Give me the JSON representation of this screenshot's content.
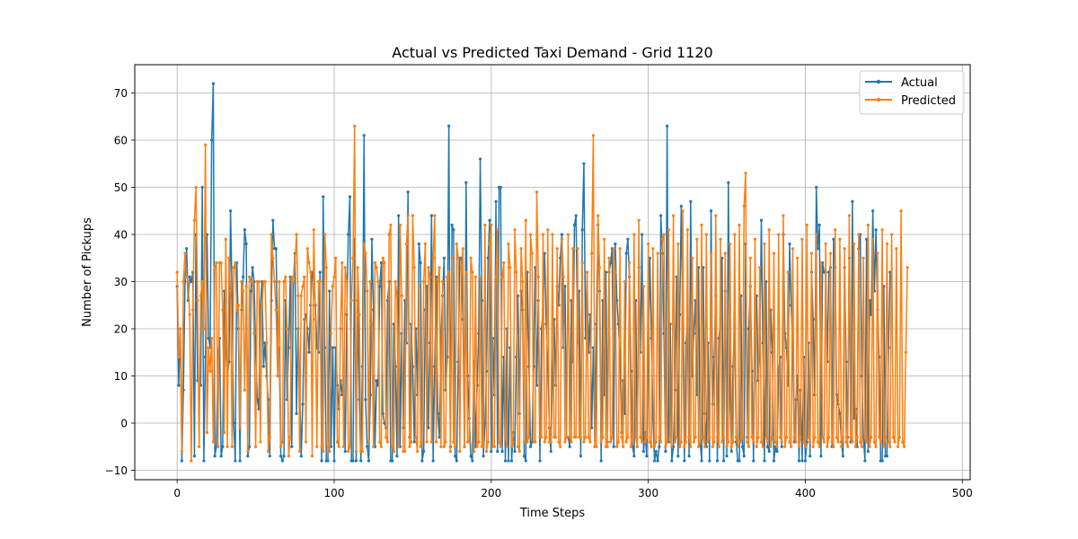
{
  "chart_data": {
    "type": "line",
    "title": "Actual vs Predicted Taxi Demand - Grid 1120",
    "xlabel": "Time Steps",
    "ylabel": "Number of Pickups",
    "xlim": [
      -27,
      505
    ],
    "ylim": [
      -12,
      76
    ],
    "xticks": [
      0,
      100,
      200,
      300,
      400,
      500
    ],
    "yticks": [
      -10,
      0,
      10,
      20,
      30,
      40,
      50,
      60,
      70
    ],
    "grid": true,
    "legend_position": "top-right",
    "x": {
      "start": 0,
      "end": 481,
      "step": 1
    },
    "series": [
      {
        "name": "Actual",
        "color": "#1f77b4",
        "values": [
          29,
          8,
          20,
          -8,
          7,
          30,
          37,
          26,
          31,
          30,
          32,
          -7,
          40,
          9,
          9,
          8,
          50,
          -8,
          14,
          40,
          18,
          16,
          60,
          72,
          -7,
          -5,
          14,
          18,
          -7,
          -5,
          28,
          15,
          10,
          13,
          45,
          27,
          0,
          -8,
          34,
          20,
          -8,
          24,
          31,
          41,
          38,
          -7,
          -5,
          28,
          33,
          30,
          15,
          5,
          3,
          25,
          30,
          12,
          17,
          10,
          5,
          -7,
          26,
          43,
          37,
          37,
          15,
          16,
          -7,
          -8,
          -7,
          26,
          5,
          16,
          31,
          -5,
          30,
          36,
          2,
          20,
          10,
          -7,
          4,
          22,
          23,
          20,
          15,
          25,
          32,
          31,
          25,
          16,
          15,
          32,
          -8,
          48,
          16,
          -8,
          -8,
          28,
          -5,
          16,
          -8,
          16,
          8,
          3,
          9,
          6,
          12,
          -6,
          23,
          40,
          48,
          -8,
          -8,
          39,
          -8,
          26,
          5,
          -8,
          12,
          61,
          5,
          -5,
          -8,
          6,
          39,
          24,
          -5,
          9,
          8,
          29,
          34,
          2,
          0,
          -1,
          26,
          30,
          -8,
          -8,
          21,
          12,
          -7,
          44,
          -5,
          19,
          -1,
          26,
          17,
          49,
          -3,
          21,
          12,
          -4,
          20,
          6,
          38,
          34,
          -8,
          -6,
          24,
          29,
          -1,
          17,
          44,
          -8,
          12,
          31,
          2,
          -3,
          18,
          27,
          35,
          7,
          14,
          63,
          -5,
          42,
          41,
          -7,
          -8,
          13,
          35,
          35,
          22,
          -5,
          51,
          10,
          1,
          -7,
          -8,
          13,
          -5,
          8,
          19,
          56,
          26,
          -7,
          0,
          11,
          35,
          43,
          -6,
          18,
          6,
          47,
          -6,
          50,
          50,
          -6,
          14,
          -8,
          20,
          -8,
          16,
          -8,
          -2,
          -6,
          14,
          27,
          2,
          28,
          24,
          -7,
          -8,
          32,
          12,
          -5,
          -4,
          12,
          33,
          8,
          26,
          -8,
          20,
          24,
          36,
          21,
          12,
          -1,
          -6,
          10,
          22,
          8,
          29,
          25,
          35,
          40,
          16,
          29,
          -3,
          -3,
          -5,
          26,
          13,
          42,
          44,
          17,
          28,
          -7,
          41,
          55,
          18,
          32,
          15,
          23,
          -1,
          16,
          -5,
          21,
          42,
          28,
          -8,
          26,
          6,
          32,
          -4,
          32,
          34,
          37,
          -5,
          38,
          26,
          21,
          14,
          -2,
          9,
          2,
          36,
          39,
          31,
          11,
          -5,
          -7,
          26,
          -5,
          33,
          15,
          40,
          -6,
          -2,
          -7,
          14,
          35,
          18,
          1,
          -8,
          -6,
          -8,
          -5,
          44,
          36,
          19,
          -6,
          63,
          -4,
          21,
          -8,
          -5,
          7,
          31,
          -7,
          23,
          46,
          21,
          -8,
          17,
          22,
          -7,
          47,
          10,
          19,
          26,
          6,
          33,
          -4,
          -8,
          33,
          2,
          -5,
          17,
          -8,
          45,
          4,
          14,
          27,
          -8,
          18,
          22,
          35,
          -8,
          28,
          -7,
          51,
          6,
          -6,
          12,
          22,
          -4,
          -8,
          -8,
          27,
          -5,
          -7,
          38,
          -3,
          20,
          29,
          11,
          -8,
          20,
          27,
          9,
          15,
          43,
          17,
          -8,
          30,
          -5,
          -6,
          24,
          15,
          -8,
          -5,
          -6,
          11,
          14,
          -5,
          40,
          19,
          16,
          8,
          38,
          25,
          16,
          -4,
          5,
          10,
          -8,
          7,
          -8,
          14,
          -8,
          -4,
          17,
          -7,
          32,
          22,
          6,
          50,
          37,
          42,
          -7,
          34,
          32,
          32,
          13,
          32,
          33,
          -5,
          39,
          33,
          6,
          4,
          2,
          -4,
          -7,
          33,
          13,
          -3,
          35,
          -4,
          47,
          1,
          3,
          -5,
          37,
          40,
          10,
          -3,
          -8,
          39,
          -6,
          26,
          23,
          45,
          28,
          41,
          24,
          14,
          -8,
          -8,
          29,
          -7,
          -7,
          16,
          32
        ],
        "marker": "point"
      },
      {
        "name": "Predicted",
        "color": "#ff7f0e",
        "values": [
          32,
          14,
          20,
          -6,
          30,
          36,
          31,
          30,
          23,
          -8,
          24,
          43,
          50,
          26,
          -5,
          27,
          30,
          20,
          59,
          -2,
          16,
          11,
          18,
          -4,
          33,
          34,
          -5,
          34,
          34,
          24,
          -2,
          39,
          -5,
          35,
          28,
          -5,
          33,
          34,
          24,
          25,
          -1,
          30,
          28,
          7,
          29,
          -6,
          31,
          30,
          30,
          19,
          -5,
          30,
          30,
          -4,
          25,
          30,
          30,
          17,
          -6,
          -3,
          40,
          35,
          30,
          24,
          10,
          30,
          -5,
          -4,
          30,
          31,
          20,
          -7,
          -3,
          31,
          30,
          34,
          40,
          27,
          -6,
          27,
          29,
          31,
          -4,
          37,
          34,
          32,
          -7,
          41,
          22,
          -5,
          30,
          30,
          -5,
          -6,
          40,
          33,
          -5,
          -6,
          19,
          29,
          31,
          35,
          -4,
          -5,
          20,
          34,
          -5,
          33,
          30,
          -6,
          -5,
          26,
          35,
          63,
          -6,
          33,
          23,
          -6,
          -6,
          38,
          36,
          28,
          -4,
          30,
          21,
          -5,
          34,
          33,
          30,
          -4,
          -5,
          35,
          34,
          -3,
          -4,
          40,
          42,
          -5,
          -6,
          30,
          27,
          -5,
          42,
          27,
          -6,
          -6,
          38,
          44,
          -5,
          -4,
          44,
          33,
          -3,
          -6,
          29,
          -5,
          -4,
          30,
          38,
          -4,
          33,
          31,
          -4,
          35,
          44,
          -4,
          30,
          33,
          -5,
          30,
          -5,
          -4,
          31,
          32,
          -6,
          35,
          -4,
          -5,
          38,
          35,
          -6,
          33,
          37,
          -5,
          32,
          -4,
          -4,
          35,
          32,
          -6,
          31,
          -5,
          -4,
          31,
          -5,
          -5,
          42,
          -6,
          -4,
          38,
          42,
          -5,
          -5,
          31,
          41,
          -4,
          -5,
          31,
          34,
          -3,
          -5,
          38,
          33,
          -5,
          -4,
          41,
          32,
          -5,
          -6,
          37,
          30,
          -4,
          43,
          -4,
          -3,
          40,
          36,
          -4,
          -4,
          49,
          31,
          -3,
          -3,
          40,
          -4,
          -3,
          41,
          -4,
          -4,
          40,
          -3,
          -3,
          37,
          -4,
          -5,
          39,
          31,
          -4,
          -3,
          40,
          -3,
          -4,
          37,
          -3,
          -3,
          37,
          -3,
          -3,
          34,
          -4,
          -3,
          32,
          -3,
          -4,
          36,
          61,
          -5,
          -5,
          44,
          33,
          -4,
          -3,
          39,
          -5,
          -5,
          35,
          -4,
          -3,
          37,
          32,
          -5,
          -4,
          37,
          -3,
          -5,
          30,
          -4,
          -3,
          34,
          -5,
          -4,
          40,
          -3,
          -5,
          43,
          -3,
          -4,
          29,
          -4,
          -3,
          38,
          -4,
          -5,
          37,
          -5,
          -4,
          36,
          -3,
          -4,
          39,
          40,
          -5,
          -4,
          41,
          -3,
          -5,
          44,
          -4,
          -3,
          38,
          -5,
          -4,
          45,
          -5,
          -4,
          41,
          -3,
          -5,
          35,
          -4,
          -3,
          39,
          -5,
          -4,
          42,
          -3,
          -5,
          40,
          -4,
          -3,
          36,
          -5,
          -4,
          44,
          -3,
          -5,
          39,
          -4,
          -3,
          36,
          -5,
          -4,
          38,
          -5,
          -4,
          40,
          -3,
          -5,
          42,
          -4,
          -3,
          46,
          53,
          -4,
          -5,
          35,
          -3,
          -4,
          39,
          -5,
          -3,
          33,
          -4,
          -5,
          38,
          -3,
          -4,
          41,
          -5,
          -3,
          36,
          -4,
          -5,
          40,
          -3,
          -4,
          44,
          -5,
          -3,
          32,
          -4,
          -5,
          37,
          -3,
          -4,
          35,
          -5,
          -3,
          39,
          -4,
          -5,
          42,
          -3,
          -4,
          36,
          -5,
          -3,
          40,
          -4,
          -5,
          34,
          -3,
          -4,
          38,
          -5,
          -3,
          36,
          -4,
          -5,
          41,
          -3,
          -4,
          39,
          -5,
          -3,
          37,
          -4,
          -5,
          44,
          -3,
          -4,
          38,
          -5,
          -3,
          40,
          -4,
          -5,
          35,
          -3,
          -4,
          42,
          -5,
          -3,
          39,
          -4,
          -5,
          36,
          -3,
          -4,
          41,
          -5,
          -3,
          38,
          -4,
          -5,
          40,
          -3,
          -4,
          37,
          -5,
          -3,
          45,
          -4,
          -5,
          15,
          33
        ],
        "marker": "point"
      }
    ]
  }
}
